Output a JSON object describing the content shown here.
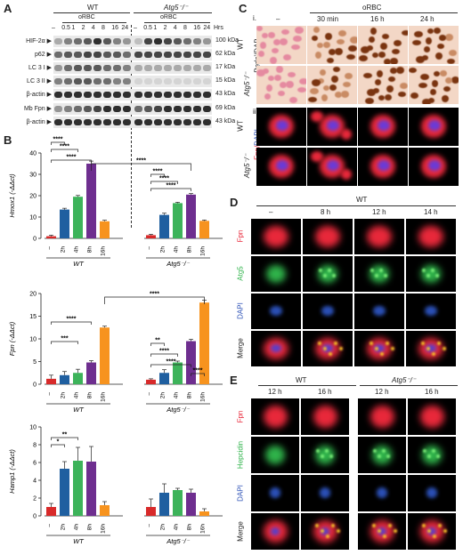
{
  "panelA": {
    "letter": "A",
    "groups": [
      "WT",
      "Atg5⁻/⁻"
    ],
    "treatment": "oRBC",
    "time_unit": "Hrs",
    "timepoints": [
      "–",
      "0.5",
      "1",
      "2",
      "4",
      "8",
      "16",
      "24"
    ],
    "blots": [
      {
        "label": "HIF-2α ▶",
        "kda": "100 kDa"
      },
      {
        "label": "p62 ▶",
        "kda": "62 kDa"
      },
      {
        "label": "LC 3 I ▶",
        "kda": "17 kDa"
      },
      {
        "label": "LC 3 II ▶",
        "kda": "15 kDa"
      },
      {
        "label": "β-actin ▶",
        "kda": "43 kDa"
      },
      {
        "label": "Mb Fpn ▶",
        "kda": "69 kDa"
      },
      {
        "label": "β-actin ▶",
        "kda": "43 kDa"
      }
    ]
  },
  "panelB": {
    "letter": "B",
    "group_labels": [
      "WT",
      "Atg5⁻/⁻"
    ],
    "x_ticks": [
      "–",
      "2h",
      "4h",
      "8h",
      "16h"
    ],
    "colors": [
      "#d82a2a",
      "#1f5fa0",
      "#3db35a",
      "#6e2e8f",
      "#f7931e"
    ]
  },
  "chart_data": [
    {
      "type": "bar",
      "ylabel": "Hmox1 (-ΔΔct)",
      "ylim": [
        0,
        40
      ],
      "yticks": [
        "0",
        "10",
        "20",
        "30",
        "40"
      ],
      "categories": [
        "–",
        "2h",
        "4h",
        "8h",
        "16h"
      ],
      "series": [
        {
          "name": "WT",
          "values": [
            1,
            13.5,
            19.5,
            35,
            8
          ],
          "errors": [
            0.5,
            0.6,
            0.6,
            1.2,
            0.5
          ]
        },
        {
          "name": "Atg5⁻/⁻",
          "values": [
            1.5,
            11,
            16.5,
            20.5,
            8.2
          ],
          "errors": [
            0.4,
            0.8,
            0.4,
            0.5,
            0.4
          ]
        }
      ],
      "significance": [
        "****",
        "****",
        "****",
        "****",
        "****",
        "****",
        "****"
      ]
    },
    {
      "type": "bar",
      "ylabel": "Fpn (-ΔΔct)",
      "ylim": [
        0,
        20
      ],
      "yticks": [
        "0",
        "5",
        "10",
        "15",
        "20"
      ],
      "categories": [
        "–",
        "2h",
        "4h",
        "8h",
        "16h"
      ],
      "series": [
        {
          "name": "WT",
          "values": [
            1.2,
            2,
            2.5,
            4.8,
            12.5
          ],
          "errors": [
            0.8,
            0.8,
            0.8,
            0.4,
            0.3
          ]
        },
        {
          "name": "Atg5⁻/⁻",
          "values": [
            1,
            2.5,
            4.8,
            9.5,
            18
          ],
          "errors": [
            0.2,
            0.7,
            0.3,
            0.4,
            0.5
          ]
        }
      ],
      "significance": [
        "****",
        "***",
        "****",
        "**",
        "****",
        "****",
        "****"
      ]
    },
    {
      "type": "bar",
      "ylabel": "Hamp1 (-ΔΔct)",
      "ylim": [
        0,
        10
      ],
      "yticks": [
        "0",
        "2",
        "4",
        "6",
        "8",
        "10"
      ],
      "categories": [
        "–",
        "2h",
        "4h",
        "8h",
        "16h"
      ],
      "series": [
        {
          "name": "WT",
          "values": [
            1,
            5.3,
            6.2,
            6.1,
            1.2
          ],
          "errors": [
            0.4,
            0.8,
            1.5,
            1.7,
            0.4
          ]
        },
        {
          "name": "Atg5⁻/⁻",
          "values": [
            1,
            2.6,
            2.9,
            2.6,
            0.5
          ],
          "errors": [
            0.9,
            1.0,
            0.2,
            0.4,
            0.3
          ]
        }
      ],
      "significance": [
        "*",
        "**"
      ]
    }
  ],
  "panelC": {
    "letter": "C",
    "sub_i": "i.",
    "sub_ii": "ii.",
    "treatment": "oRBC",
    "cols": [
      "–",
      "30 min",
      "16 h",
      "24 h"
    ],
    "rows": [
      "WT",
      "Atg5⁻/⁻"
    ],
    "stain_i": "Perls'/DAB",
    "stain_ii_fpn": "Fpn/",
    "stain_ii_dapi": "DAPI"
  },
  "panelD": {
    "letter": "D",
    "group": "WT",
    "cols": [
      "–",
      "8 h",
      "12 h",
      "14 h"
    ],
    "rows": [
      {
        "label": "Fpn",
        "color": "#e8283a"
      },
      {
        "label": "Atg5",
        "color": "#2fb34a"
      },
      {
        "label": "DAPI",
        "color": "#2a4fb5"
      },
      {
        "label": "Merge",
        "color": "#222222"
      }
    ]
  },
  "panelE": {
    "letter": "E",
    "groups": [
      "WT",
      "Atg5⁻/⁻"
    ],
    "cols": [
      "12 h",
      "16 h",
      "12 h",
      "16 h"
    ],
    "rows": [
      {
        "label": "Fpn",
        "color": "#e8283a"
      },
      {
        "label": "Hepcidin",
        "color": "#2fb34a"
      },
      {
        "label": "DAPI",
        "color": "#2a4fb5"
      },
      {
        "label": "Merge",
        "color": "#222222"
      }
    ]
  }
}
